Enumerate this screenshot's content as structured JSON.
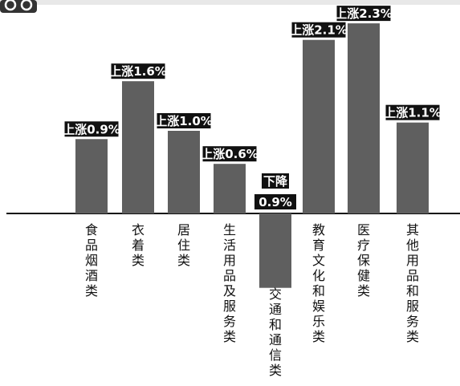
{
  "chart_data": {
    "type": "bar",
    "categories": [
      "食品烟酒类",
      "衣着类",
      "居住类",
      "生活用品及服务类",
      "交通和通信类",
      "教育文化和娱乐类",
      "医疗保健类",
      "其他用品和服务类"
    ],
    "values": [
      0.9,
      1.6,
      1.0,
      0.6,
      -0.9,
      2.1,
      2.3,
      1.1
    ],
    "data_labels": [
      "上涨0.9%",
      "上涨1.6%",
      "上涨1.0%",
      "上涨0.6%",
      "下降0.9%",
      "上涨2.1%",
      "上涨2.3%",
      "上涨1.1%"
    ],
    "title": "",
    "xlabel": "",
    "ylabel": "",
    "colors": {
      "bar": "#5f5f5f",
      "label_bg": "#111111",
      "label_text": "#ffffff",
      "axis": "#111111"
    }
  }
}
